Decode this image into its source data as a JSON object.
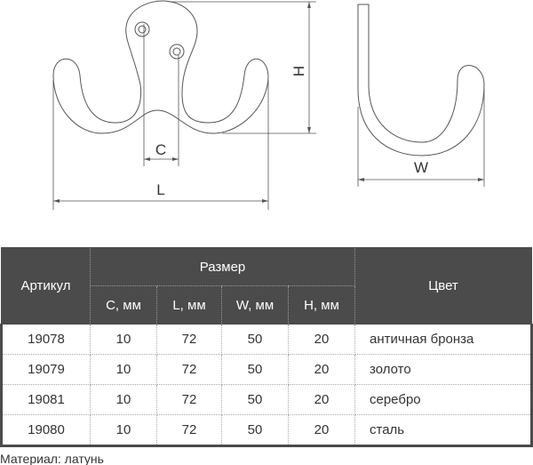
{
  "drawing": {
    "labels": {
      "c": "C",
      "l": "L",
      "h": "H",
      "w": "W"
    }
  },
  "table": {
    "headers": {
      "article": "Артикул",
      "size": "Размер",
      "color": "Цвет",
      "c": "C, мм",
      "l": "L, мм",
      "w": "W, мм",
      "h": "H, мм"
    },
    "rows": [
      {
        "article": "19078",
        "c": "10",
        "l": "72",
        "w": "50",
        "h": "20",
        "color": "античная бронза"
      },
      {
        "article": "19079",
        "c": "10",
        "l": "72",
        "w": "50",
        "h": "20",
        "color": "золото"
      },
      {
        "article": "19081",
        "c": "10",
        "l": "72",
        "w": "50",
        "h": "20",
        "color": "серебро"
      },
      {
        "article": "19080",
        "c": "10",
        "l": "72",
        "w": "50",
        "h": "20",
        "color": "сталь"
      }
    ]
  },
  "material": "Материал: латунь",
  "colors": {
    "header_bg": "#4b4b4b",
    "line": "#555555"
  }
}
